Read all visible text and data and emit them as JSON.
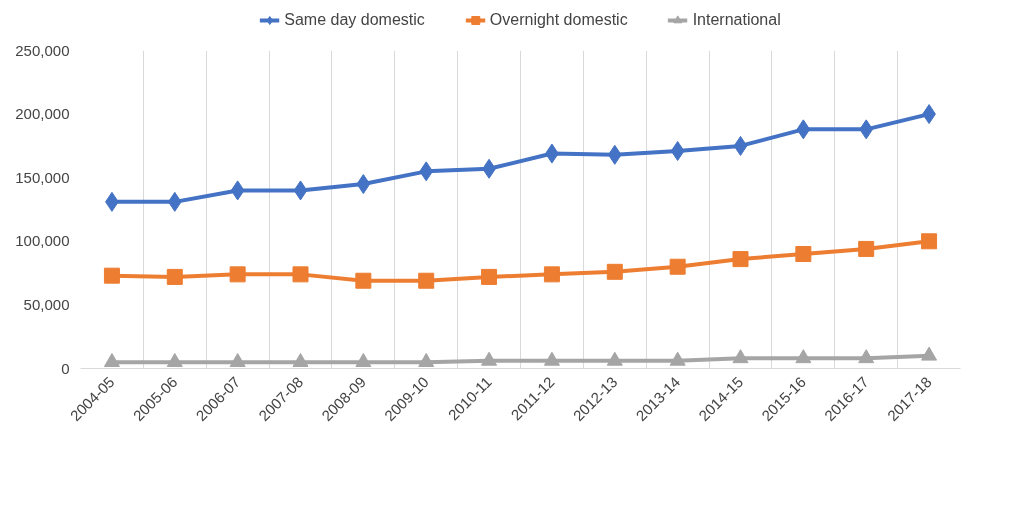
{
  "chart_data": {
    "type": "line",
    "categories": [
      "2004-05",
      "2005-06",
      "2006-07",
      "2007-08",
      "2008-09",
      "2009-10",
      "2010-11",
      "2011-12",
      "2012-13",
      "2013-14",
      "2014-15",
      "2015-16",
      "2016-17",
      "2017-18"
    ],
    "series": [
      {
        "name": "Same day domestic",
        "color": "#4472c4",
        "marker": "diamond",
        "values": [
          131000,
          131000,
          140000,
          140000,
          145000,
          155000,
          157000,
          169000,
          168000,
          171000,
          175000,
          188000,
          188000,
          200000
        ]
      },
      {
        "name": "Overnight domestic",
        "color": "#ed7d31",
        "marker": "square",
        "values": [
          73000,
          72000,
          74000,
          74000,
          69000,
          69000,
          72000,
          74000,
          76000,
          80000,
          86000,
          90000,
          94000,
          100000
        ]
      },
      {
        "name": "International",
        "color": "#a5a5a5",
        "marker": "triangle",
        "values": [
          5000,
          5000,
          5000,
          5000,
          5000,
          5000,
          6000,
          6000,
          6000,
          6000,
          8000,
          8000,
          8000,
          10000
        ]
      }
    ],
    "ylim": [
      0,
      250000
    ],
    "yticks": [
      {
        "value": 0,
        "label": "0"
      },
      {
        "value": 50000,
        "label": "50,000"
      },
      {
        "value": 100000,
        "label": "100,000"
      },
      {
        "value": 150000,
        "label": "150,000"
      },
      {
        "value": 200000,
        "label": "200,000"
      },
      {
        "value": 250000,
        "label": "250,000"
      }
    ],
    "grid": "x",
    "legend": "top",
    "line_style": "solid"
  }
}
